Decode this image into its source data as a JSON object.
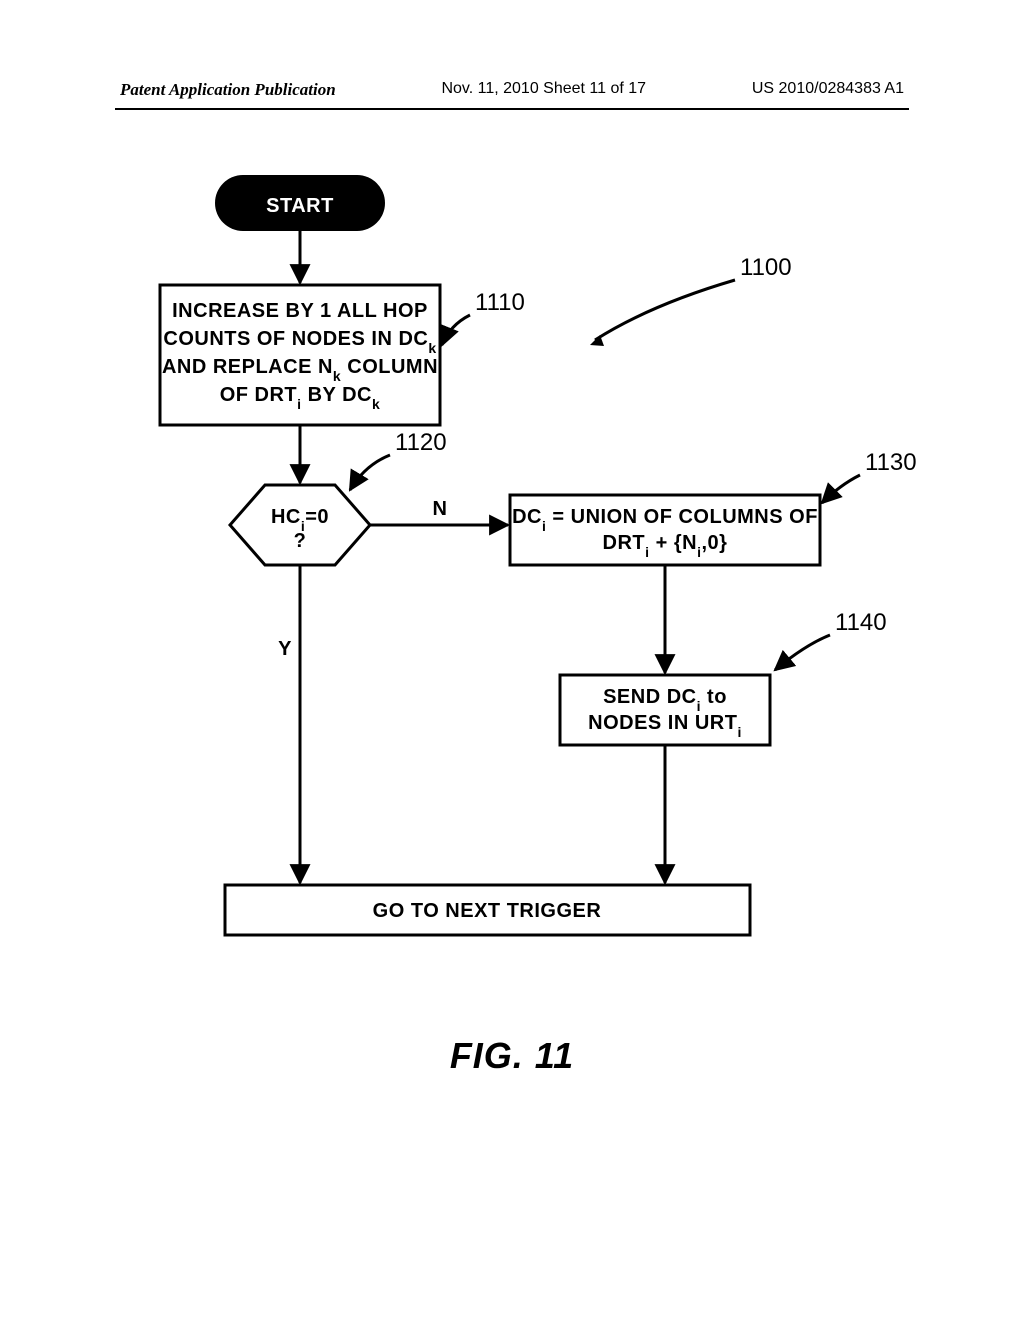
{
  "header": {
    "left": "Patent Application Publication",
    "center": "Nov. 11, 2010  Sheet 11 of 17",
    "right": "US 2010/0284383 A1"
  },
  "flowchart": {
    "type": "flowchart",
    "background_color": "#ffffff",
    "stroke_color": "#000000",
    "stroke_width": 3,
    "font_size": 20,
    "nodes": {
      "start": {
        "label": "START",
        "ref": ""
      },
      "box1110": {
        "lines": [
          "INCREASE BY 1 ALL HOP",
          "COUNTS OF NODES IN DC|k|",
          "AND REPLACE N|k| COLUMN",
          "OF DRT|i| BY DC|k|"
        ],
        "ref": "1110"
      },
      "ref1100": {
        "ref": "1100"
      },
      "decision1120": {
        "lines": [
          "HC|i|=0",
          "?"
        ],
        "ref": "1120",
        "yes": "Y",
        "no": "N"
      },
      "box1130": {
        "lines": [
          "DC|i| = UNION OF COLUMNS OF",
          "DRT|i| + {N|i|,0}"
        ],
        "ref": "1130"
      },
      "box1140": {
        "lines": [
          "SEND DC|i| to",
          "NODES IN URT|i|"
        ],
        "ref": "1140"
      },
      "end": {
        "label": "GO TO NEXT TRIGGER"
      }
    },
    "figure_label": "FIG. 11"
  }
}
